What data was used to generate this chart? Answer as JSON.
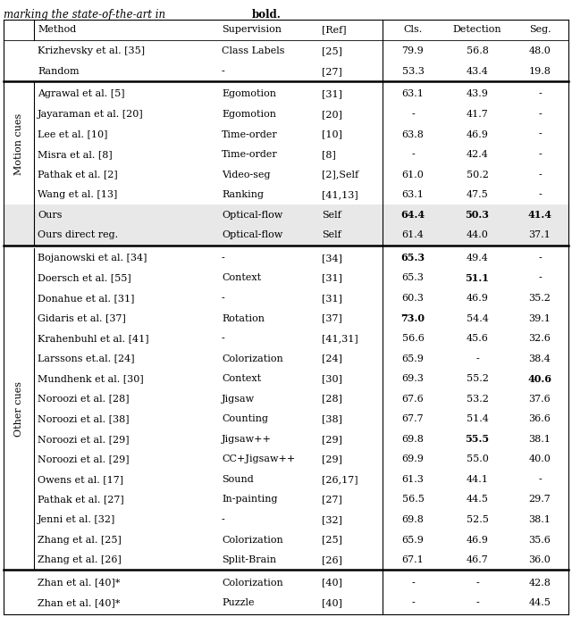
{
  "header": [
    "Method",
    "Supervision",
    "[Ref]",
    "Cls.",
    "Detection",
    "Seg."
  ],
  "top_rows": [
    [
      "Krizhevsky et al. [35]",
      "Class Labels",
      "[25]",
      "79.9",
      "56.8",
      "48.0"
    ],
    [
      "Random",
      "-",
      "[27]",
      "53.3",
      "43.4",
      "19.8"
    ]
  ],
  "motion_rows": [
    [
      "Agrawal et al. [5]",
      "Egomotion",
      "[31]",
      "63.1",
      "43.9",
      "-"
    ],
    [
      "Jayaraman et al. [20]",
      "Egomotion",
      "[20]",
      "-",
      "41.7",
      "-"
    ],
    [
      "Lee et al. [10]",
      "Time-order",
      "[10]",
      "63.8",
      "46.9",
      "-"
    ],
    [
      "Misra et al. [8]",
      "Time-order",
      "[8]",
      "-",
      "42.4",
      "-"
    ],
    [
      "Pathak et al. [2]",
      "Video-seg",
      "[2],Self",
      "61.0",
      "50.2",
      "-"
    ],
    [
      "Wang et al. [13]",
      "Ranking",
      "[41,13]",
      "63.1",
      "47.5",
      "-"
    ]
  ],
  "ours_rows": [
    [
      "Ours",
      "Optical-flow",
      "Self",
      "64.4",
      "50.3",
      "41.4"
    ],
    [
      "Ours direct reg.",
      "Optical-flow",
      "Self",
      "61.4",
      "44.0",
      "37.1"
    ]
  ],
  "ours_bold": [
    [
      3,
      4,
      5
    ],
    []
  ],
  "other_rows": [
    [
      "Bojanowski et al. [34]",
      "-",
      "[34]",
      "65.3",
      "49.4",
      "-"
    ],
    [
      "Doersch et al. [55]",
      "Context",
      "[31]",
      "65.3",
      "51.1",
      "-"
    ],
    [
      "Donahue et al. [31]",
      "-",
      "[31]",
      "60.3",
      "46.9",
      "35.2"
    ],
    [
      "Gidaris et al. [37]",
      "Rotation",
      "[37]",
      "73.0",
      "54.4",
      "39.1"
    ],
    [
      "Krahenbuhl et al. [41]",
      "-",
      "[41,31]",
      "56.6",
      "45.6",
      "32.6"
    ],
    [
      "Larssons et.al. [24]",
      "Colorization",
      "[24]",
      "65.9",
      "-",
      "38.4"
    ],
    [
      "Mundhenk et al. [30]",
      "Context",
      "[30]",
      "69.3",
      "55.2",
      "40.6"
    ],
    [
      "Noroozi et al. [28]",
      "Jigsaw",
      "[28]",
      "67.6",
      "53.2",
      "37.6"
    ],
    [
      "Noroozi et al. [38]",
      "Counting",
      "[38]",
      "67.7",
      "51.4",
      "36.6"
    ],
    [
      "Noroozi et al. [29]",
      "Jigsaw++",
      "[29]",
      "69.8",
      "55.5",
      "38.1"
    ],
    [
      "Noroozi et al. [29]",
      "CC+Jigsaw++",
      "[29]",
      "69.9",
      "55.0",
      "40.0"
    ],
    [
      "Owens et al. [17]",
      "Sound",
      "[26,17]",
      "61.3",
      "44.1",
      "-"
    ],
    [
      "Pathak et al. [27]",
      "In-painting",
      "[27]",
      "56.5",
      "44.5",
      "29.7"
    ],
    [
      "Jenni et al. [32]",
      "-",
      "[32]",
      "69.8",
      "52.5",
      "38.1"
    ],
    [
      "Zhang et al. [25]",
      "Colorization",
      "[25]",
      "65.9",
      "46.9",
      "35.6"
    ],
    [
      "Zhang et al. [26]",
      "Split-Brain",
      "[26]",
      "67.1",
      "46.7",
      "36.0"
    ]
  ],
  "other_bold": [
    [
      3
    ],
    [
      4
    ],
    [],
    [
      3
    ],
    [],
    [],
    [
      5
    ],
    [],
    [],
    [
      4
    ],
    [],
    [],
    [],
    [],
    [],
    []
  ],
  "zhan_rows": [
    [
      "Zhan et al. [40]*",
      "Colorization",
      "[40]",
      "-",
      "-",
      "42.8"
    ],
    [
      "Zhan et al. [40]*",
      "Puzzle",
      "[40]",
      "-",
      "-",
      "44.5"
    ]
  ],
  "ours_bg": "#e8e8e8",
  "fs": 8.0,
  "fs_title": 8.5
}
